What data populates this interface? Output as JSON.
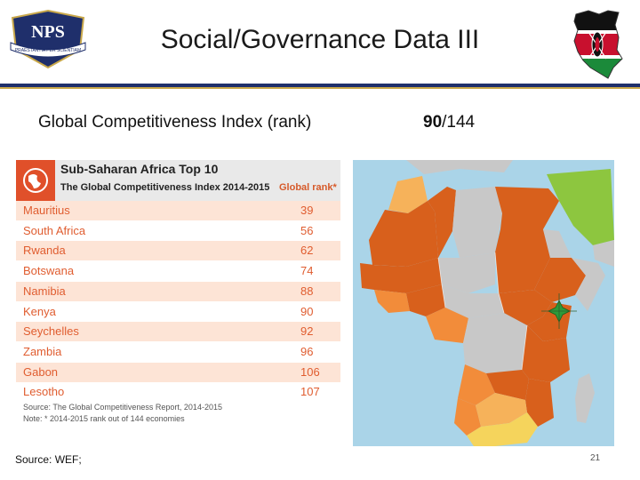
{
  "slide": {
    "title": "Social/Governance Data III",
    "source": "Source: WEF;",
    "page_number": "21"
  },
  "logo": {
    "text": "NPS",
    "motto": "PRAESTANTIA PER SCIENTIAM"
  },
  "indicator": {
    "label": "Global Competitiveness Index (rank)",
    "value": "90",
    "total": "/144"
  },
  "table": {
    "heading": "Sub-Saharan Africa Top 10",
    "subheading": "The Global Competitiveness Index 2014-2015",
    "column_header": "Global rank*",
    "rows": [
      {
        "country": "Mauritius",
        "rank": "39"
      },
      {
        "country": "South Africa",
        "rank": "56"
      },
      {
        "country": "Rwanda",
        "rank": "62"
      },
      {
        "country": "Botswana",
        "rank": "74"
      },
      {
        "country": "Namibia",
        "rank": "88"
      },
      {
        "country": "Kenya",
        "rank": "90"
      },
      {
        "country": "Seychelles",
        "rank": "92"
      },
      {
        "country": "Zambia",
        "rank": "96"
      },
      {
        "country": "Gabon",
        "rank": "106"
      },
      {
        "country": "Lesotho",
        "rank": "107"
      }
    ],
    "source_note": "Source: The Global Competitiveness Report, 2014-2015",
    "footnote": "Note: * 2014-2015 rank out of 144 economies"
  },
  "colors": {
    "navy_rule": "#1f2f6b",
    "gold_rule": "#c9a84a",
    "table_accent": "#e05d30",
    "row_alt": "#fde4d6",
    "map_dark_orange": "#d8601c",
    "map_orange": "#f28c3a",
    "map_light": "#f6b25a",
    "map_yellow": "#f5d45c",
    "map_green": "#8dc63f",
    "map_grey": "#c8c8c8",
    "map_water": "#aad4e8"
  }
}
